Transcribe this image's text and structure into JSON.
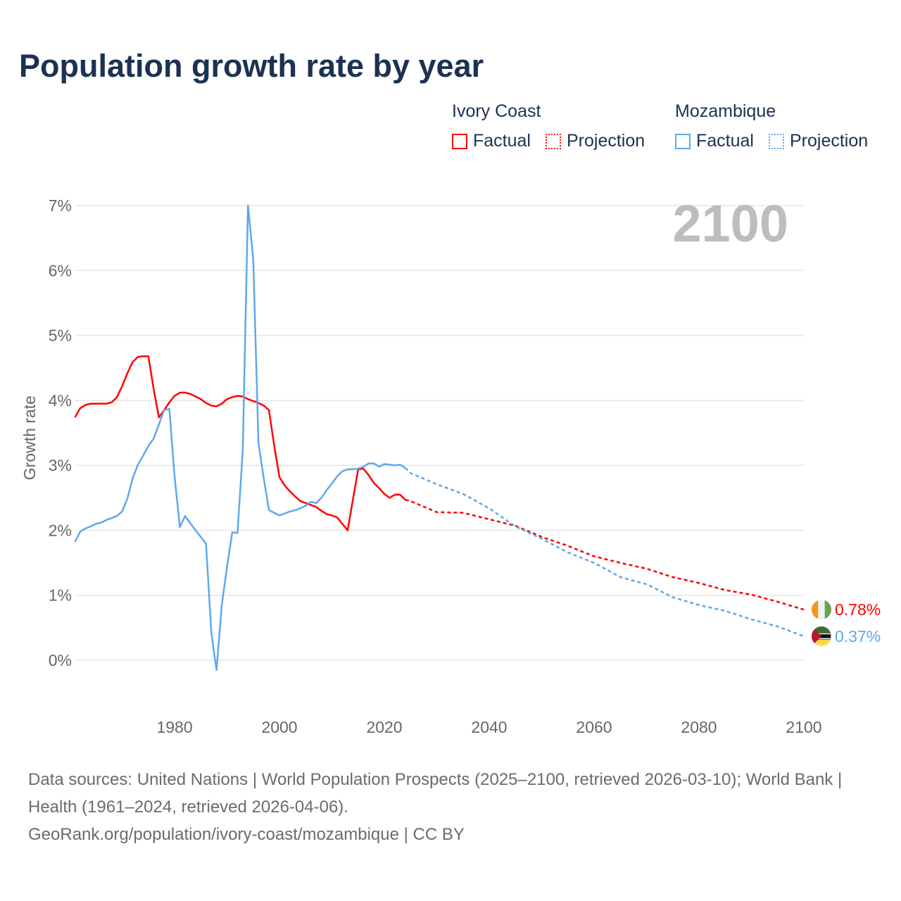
{
  "title": "Population growth rate by year",
  "legend": {
    "groups": [
      {
        "country": "Ivory Coast",
        "factual": "Factual",
        "projection": "Projection",
        "color": "#ff0000"
      },
      {
        "country": "Mozambique",
        "factual": "Factual",
        "projection": "Projection",
        "color": "#5ea8ec"
      }
    ]
  },
  "year_display": "2100",
  "chart_data": {
    "type": "line",
    "title": "Population growth rate by year",
    "xlabel": "",
    "ylabel": "Growth rate",
    "xlim": [
      1961,
      2100
    ],
    "ylim": [
      -0.8,
      7.2
    ],
    "xticks": [
      1980,
      2000,
      2020,
      2040,
      2060,
      2080,
      2100
    ],
    "xtick_labels": [
      "1980",
      "2000",
      "2020",
      "2040",
      "2060",
      "2080",
      "2100"
    ],
    "yticks": [
      0,
      1,
      2,
      3,
      4,
      5,
      6,
      7
    ],
    "ytick_labels": [
      "0%",
      "1%",
      "2%",
      "3%",
      "4%",
      "5%",
      "6%",
      "7%"
    ],
    "grid": true,
    "legend_position": "top-right",
    "series": [
      {
        "name": "Ivory Coast",
        "color": "#ff0000",
        "end_label": "0.78%",
        "flag": "ivory-coast-flag",
        "factual": {
          "x": [
            1961,
            1962,
            1963,
            1964,
            1965,
            1966,
            1967,
            1968,
            1969,
            1970,
            1971,
            1972,
            1973,
            1974,
            1975,
            1976,
            1977,
            1978,
            1979,
            1980,
            1981,
            1982,
            1983,
            1984,
            1985,
            1986,
            1987,
            1988,
            1989,
            1990,
            1991,
            1992,
            1993,
            1994,
            1995,
            1996,
            1997,
            1998,
            1999,
            2000,
            2001,
            2002,
            2003,
            2004,
            2005,
            2006,
            2007,
            2008,
            2009,
            2010,
            2011,
            2012,
            2013,
            2014,
            2015,
            2016,
            2017,
            2018,
            2019,
            2020,
            2021,
            2022,
            2023,
            2024
          ],
          "y": [
            3.74,
            3.88,
            3.93,
            3.95,
            3.95,
            3.95,
            3.95,
            3.97,
            4.05,
            4.22,
            4.42,
            4.59,
            4.67,
            4.68,
            4.68,
            4.18,
            3.74,
            3.85,
            3.97,
            4.07,
            4.12,
            4.12,
            4.1,
            4.06,
            4.02,
            3.96,
            3.92,
            3.91,
            3.95,
            4.02,
            4.05,
            4.07,
            4.06,
            4.02,
            3.99,
            3.96,
            3.92,
            3.85,
            3.3,
            2.82,
            2.69,
            2.6,
            2.52,
            2.45,
            2.42,
            2.39,
            2.36,
            2.3,
            2.25,
            2.23,
            2.2,
            2.1,
            2.0,
            2.47,
            2.94,
            2.95,
            2.85,
            2.73,
            2.65,
            2.56,
            2.5,
            2.55,
            2.55,
            2.47
          ]
        },
        "projection": {
          "x": [
            2024,
            2025,
            2030,
            2035,
            2040,
            2045,
            2050,
            2055,
            2060,
            2065,
            2070,
            2075,
            2080,
            2085,
            2090,
            2095,
            2100
          ],
          "y": [
            2.47,
            2.45,
            2.28,
            2.27,
            2.17,
            2.07,
            1.9,
            1.76,
            1.6,
            1.5,
            1.41,
            1.28,
            1.19,
            1.08,
            1.01,
            0.9,
            0.78
          ]
        }
      },
      {
        "name": "Mozambique",
        "color": "#5ea8ec",
        "end_label": "0.37%",
        "flag": "mozambique-flag",
        "factual": {
          "x": [
            1961,
            1962,
            1963,
            1964,
            1965,
            1966,
            1967,
            1968,
            1969,
            1970,
            1971,
            1972,
            1973,
            1974,
            1975,
            1976,
            1977,
            1978,
            1979,
            1980,
            1981,
            1982,
            1983,
            1984,
            1985,
            1986,
            1987,
            1988,
            1989,
            1990,
            1991,
            1992,
            1993,
            1994,
            1995,
            1996,
            1997,
            1998,
            1999,
            2000,
            2001,
            2002,
            2003,
            2004,
            2005,
            2006,
            2007,
            2008,
            2009,
            2010,
            2011,
            2012,
            2013,
            2014,
            2015,
            2016,
            2017,
            2018,
            2019,
            2020,
            2021,
            2022,
            2023,
            2024
          ],
          "y": [
            1.82,
            1.98,
            2.03,
            2.06,
            2.1,
            2.12,
            2.16,
            2.19,
            2.22,
            2.29,
            2.49,
            2.8,
            3.01,
            3.15,
            3.3,
            3.41,
            3.63,
            3.85,
            3.87,
            2.83,
            2.05,
            2.22,
            2.11,
            2.0,
            1.9,
            1.79,
            0.43,
            -0.15,
            0.85,
            1.44,
            1.97,
            1.96,
            3.23,
            7.0,
            6.16,
            3.34,
            2.8,
            2.31,
            2.27,
            2.23,
            2.26,
            2.29,
            2.31,
            2.34,
            2.38,
            2.44,
            2.42,
            2.5,
            2.62,
            2.72,
            2.83,
            2.91,
            2.94,
            2.94,
            2.95,
            2.98,
            3.03,
            3.03,
            2.98,
            3.02,
            3.01,
            3.0,
            3.01,
            2.96
          ]
        },
        "projection": {
          "x": [
            2024,
            2025,
            2030,
            2035,
            2040,
            2045,
            2050,
            2055,
            2060,
            2065,
            2070,
            2075,
            2080,
            2085,
            2090,
            2095,
            2100
          ],
          "y": [
            2.96,
            2.88,
            2.71,
            2.56,
            2.34,
            2.06,
            1.87,
            1.66,
            1.5,
            1.28,
            1.17,
            0.97,
            0.85,
            0.76,
            0.63,
            0.52,
            0.37
          ]
        }
      }
    ]
  },
  "footer": {
    "sources": "Data sources: United Nations | World Population Prospects (2025–2100, retrieved 2026-03-10); World Bank | Health (1961–2024, retrieved 2026-04-06).",
    "credit": "GeoRank.org/population/ivory-coast/mozambique | CC BY"
  }
}
